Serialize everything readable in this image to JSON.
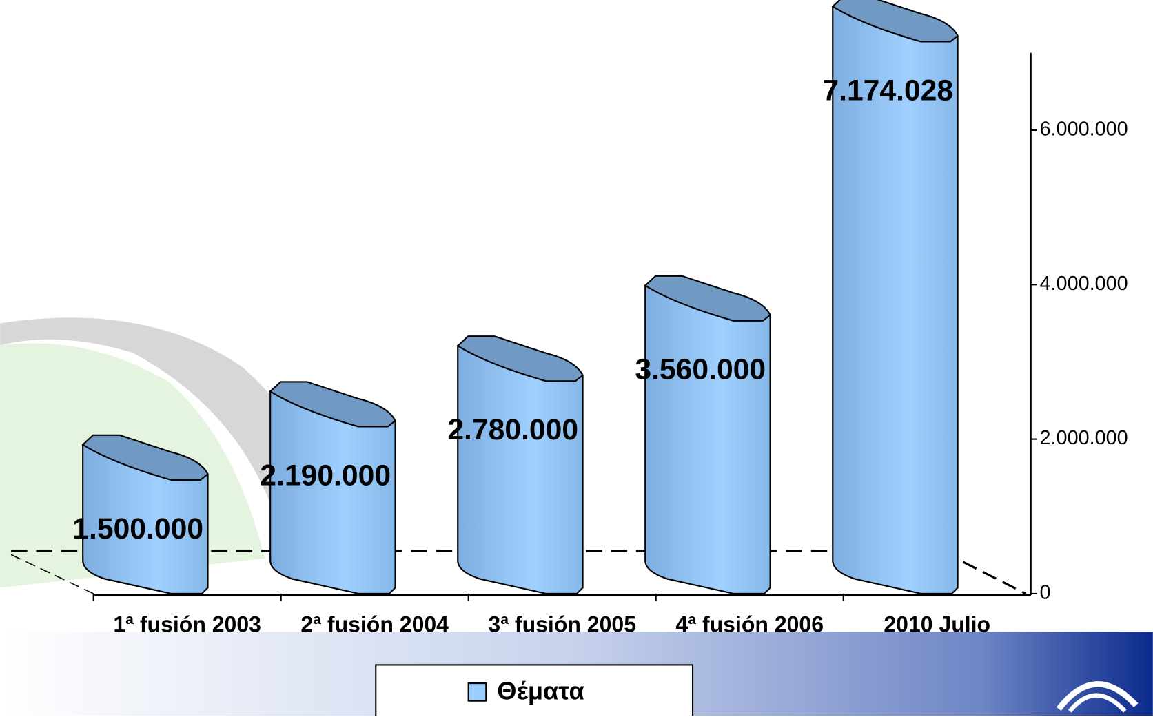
{
  "chart_data": {
    "type": "bar",
    "categories": [
      "1ª fusión 2003",
      "2ª fusión 2004",
      "3ª fusión 2005",
      "4ª fusión 2006",
      "2010 Julio"
    ],
    "series": [
      {
        "name": "Θέματα",
        "color": "#99ccff",
        "values": [
          1500000,
          2190000,
          2780000,
          3560000,
          7174028
        ],
        "value_labels": [
          "1.500.000",
          "2.190.000",
          "2.780.000",
          "3.560.000",
          "7.174.028"
        ]
      }
    ],
    "ylim": [
      0,
      7000000
    ],
    "yticks": [
      0,
      {
        "value": 2000000,
        "label": "2.000.000"
      },
      {
        "value": 4000000,
        "label": "4.000.000"
      },
      {
        "value": 6000000,
        "label": "6.000.000"
      }
    ],
    "legend": "bottom"
  }
}
